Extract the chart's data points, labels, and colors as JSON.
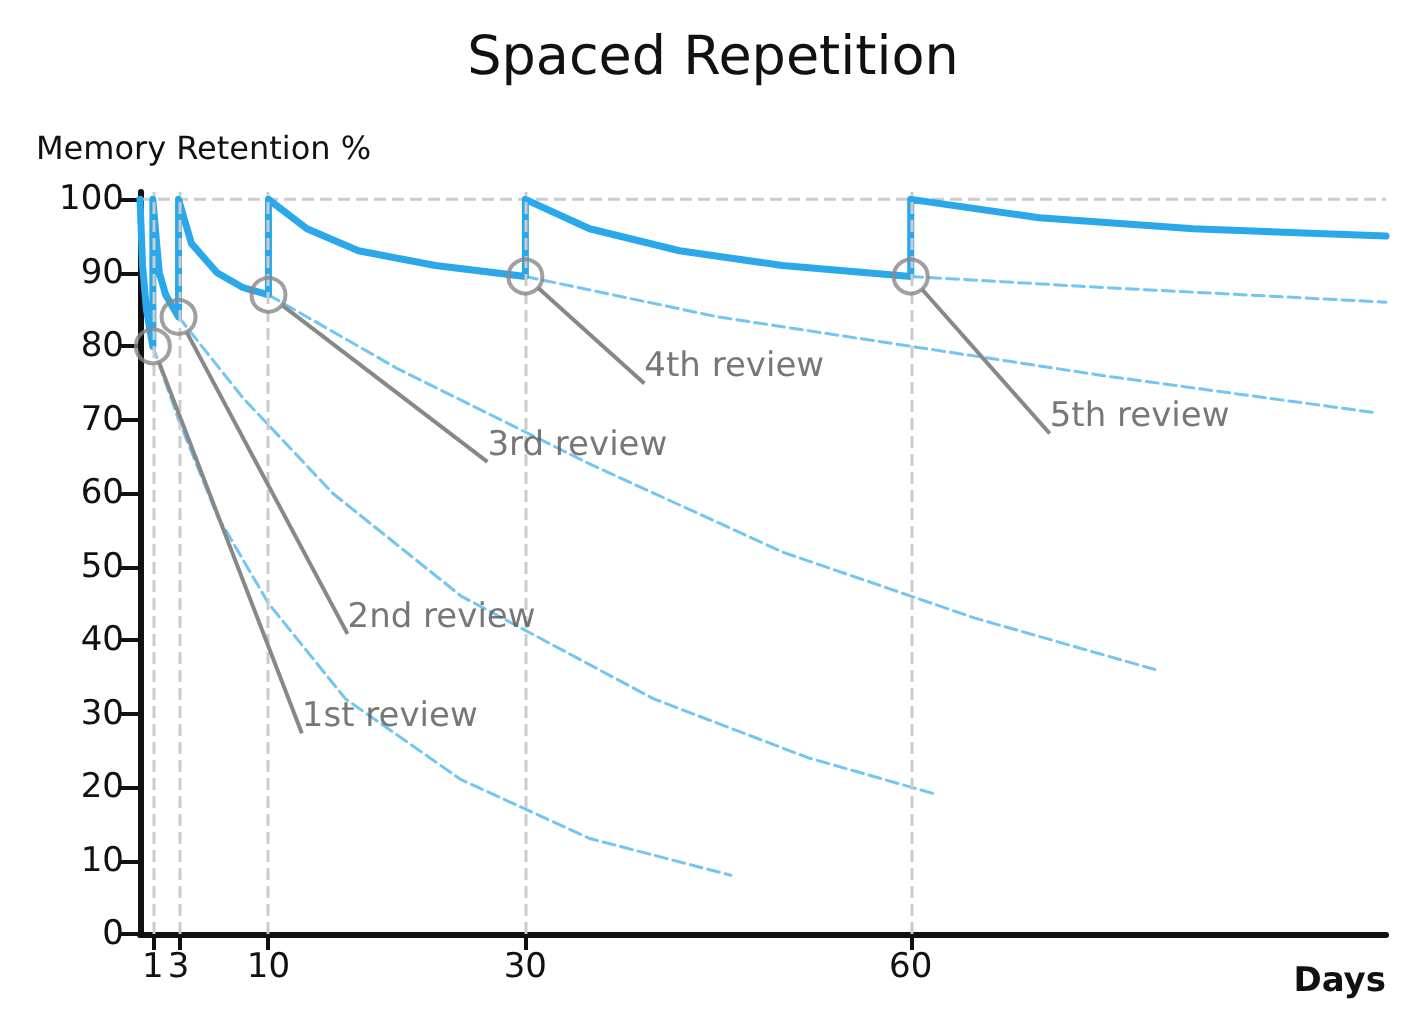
{
  "chart_data": {
    "type": "line",
    "title": "Spaced Repetition",
    "ylabel": "Memory Retention %",
    "xlabel": "Days",
    "xlim": [
      0,
      97
    ],
    "xticks": [
      1,
      3,
      10,
      30,
      60
    ],
    "ylim": [
      0,
      101
    ],
    "yticks": [
      0,
      10,
      20,
      30,
      40,
      50,
      60,
      70,
      80,
      90,
      100
    ],
    "grid": false,
    "series": [
      {
        "color": "#2aa8ea",
        "line_style": "solid",
        "x": [
          0,
          0.2,
          0.5,
          1,
          1,
          1.5,
          2,
          3,
          3,
          4,
          6,
          8,
          10,
          10,
          13,
          17,
          23,
          30,
          30,
          35,
          42,
          50,
          60,
          60,
          70,
          82,
          97
        ],
        "values": [
          100,
          91,
          85,
          80,
          100,
          90,
          87,
          84,
          100,
          94,
          90,
          88,
          87,
          100,
          96,
          93,
          91,
          89.5,
          100,
          96,
          93,
          91,
          89.5,
          100,
          97.5,
          96,
          95
        ]
      },
      {
        "color": "#74c6f2",
        "line_style": "dashed",
        "x": [
          1,
          3,
          6,
          10,
          16,
          25,
          35,
          46
        ],
        "values": [
          80,
          70,
          57,
          45,
          32,
          21,
          13,
          8
        ]
      },
      {
        "color": "#74c6f2",
        "line_style": "dashed",
        "x": [
          3,
          8,
          15,
          25,
          40,
          52,
          62
        ],
        "values": [
          84,
          73,
          60,
          46,
          32,
          24,
          19
        ]
      },
      {
        "color": "#74c6f2",
        "line_style": "dashed",
        "x": [
          10,
          20,
          35,
          50,
          65,
          79
        ],
        "values": [
          87,
          77,
          64,
          52,
          43,
          36
        ]
      },
      {
        "color": "#74c6f2",
        "line_style": "dashed",
        "x": [
          30,
          45,
          60,
          75,
          96
        ],
        "values": [
          89.5,
          84,
          80,
          76,
          71
        ]
      },
      {
        "color": "#74c6f2",
        "line_style": "dashed",
        "x": [
          60,
          75,
          97
        ],
        "values": [
          89.5,
          88,
          86
        ]
      }
    ],
    "ref_lines": [
      {
        "axis": "x",
        "value": 1,
        "color": "#cccccc",
        "line_style": "dashed"
      },
      {
        "axis": "x",
        "value": 3,
        "color": "#cccccc",
        "line_style": "dashed"
      },
      {
        "axis": "x",
        "value": 10,
        "color": "#cccccc",
        "line_style": "dashed"
      },
      {
        "axis": "x",
        "value": 30,
        "color": "#cccccc",
        "line_style": "dashed"
      },
      {
        "axis": "x",
        "value": 60,
        "color": "#cccccc",
        "line_style": "dashed"
      },
      {
        "axis": "y",
        "value": 100,
        "color": "#cccccc",
        "line_style": "dashed"
      }
    ],
    "annotations": [
      {
        "text": "1st review",
        "x": 1,
        "y": 80
      },
      {
        "text": "2nd review",
        "x": 3,
        "y": 84
      },
      {
        "text": "3rd review",
        "x": 10,
        "y": 87
      },
      {
        "text": "4th review",
        "x": 30,
        "y": 89.5
      },
      {
        "text": "5th review",
        "x": 60,
        "y": 89.5
      }
    ]
  }
}
